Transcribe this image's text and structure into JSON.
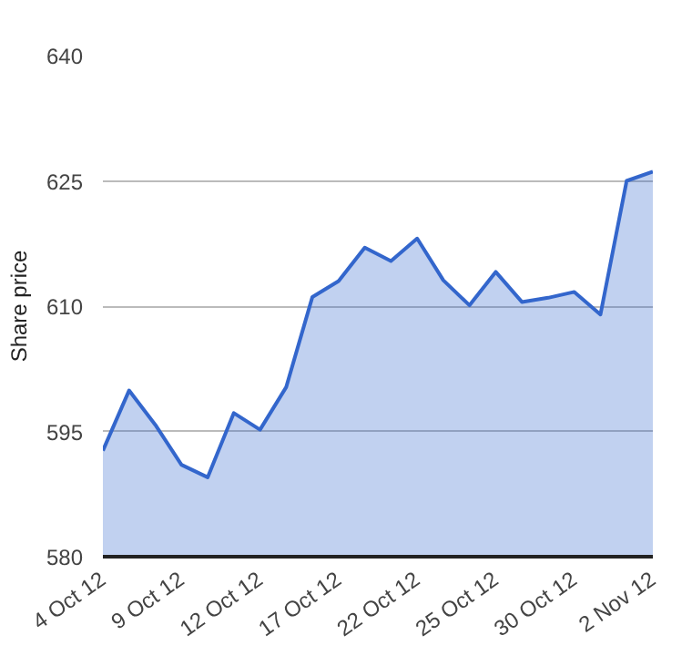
{
  "chart_data": {
    "type": "area",
    "ylabel": "Share price",
    "categories": [
      "4 Oct 12",
      null,
      null,
      "9 Oct 12",
      null,
      null,
      "12 Oct 12",
      null,
      null,
      "17 Oct 12",
      null,
      null,
      "22 Oct 12",
      null,
      null,
      "25 Oct 12",
      null,
      null,
      "30 Oct 12",
      null,
      null,
      "2 Nov 12"
    ],
    "series": [
      {
        "color": "#3366cc",
        "values": [
          592.7,
          599.9,
          595.8,
          591.0,
          589.5,
          597.2,
          595.2,
          600.3,
          611.1,
          613.0,
          617.0,
          615.4,
          618.1,
          613.1,
          610.1,
          614.1,
          610.5,
          611.0,
          611.7,
          609.0,
          625.0,
          626.1
        ]
      }
    ],
    "ylim": [
      580,
      640
    ],
    "yticks": [
      580,
      595,
      610,
      625,
      640
    ],
    "grid": "y"
  }
}
